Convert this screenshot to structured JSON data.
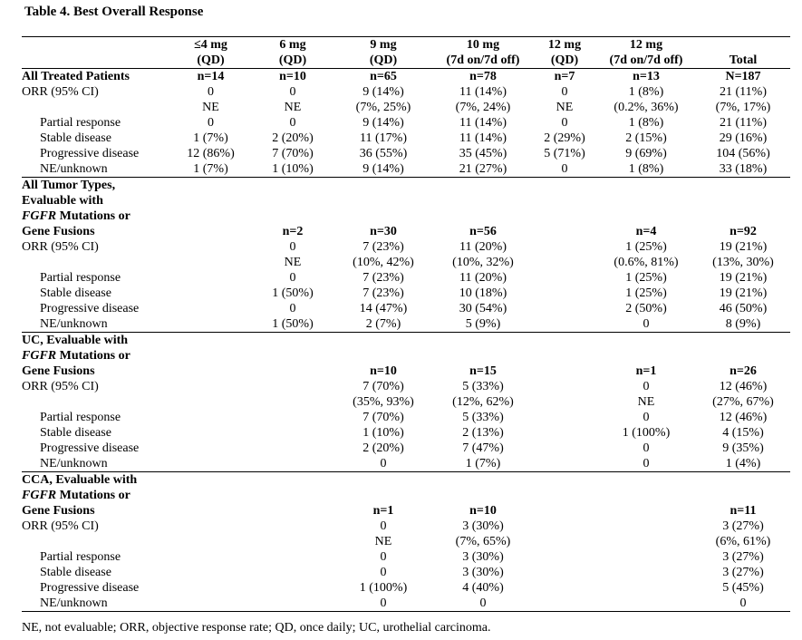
{
  "title": "Table 4. Best Overall Response",
  "header": {
    "line1": [
      "≤4 mg",
      "6 mg",
      "9 mg",
      "10 mg",
      "12 mg",
      "12 mg",
      ""
    ],
    "line2": [
      "(QD)",
      "(QD)",
      "(QD)",
      "(7d on/7d off)",
      "(QD)",
      "(7d on/7d off)",
      "Total"
    ]
  },
  "sections": [
    {
      "title_lines": [
        "All Treated Patients"
      ],
      "n": [
        "n=14",
        "n=10",
        "n=65",
        "n=78",
        "n=7",
        "n=13",
        "N=187"
      ],
      "orr_label": "ORR (95% CI)",
      "orr": [
        "0",
        "0",
        "9 (14%)",
        "11 (14%)",
        "0",
        "1 (8%)",
        "21 (11%)"
      ],
      "ci": [
        "NE",
        "NE",
        "(7%, 25%)",
        "(7%, 24%)",
        "NE",
        "(0.2%, 36%)",
        "(7%, 17%)"
      ],
      "rows": [
        {
          "label": "Partial response",
          "values": [
            "0",
            "0",
            "9 (14%)",
            "11 (14%)",
            "0",
            "1 (8%)",
            "21 (11%)"
          ]
        },
        {
          "label": "Stable disease",
          "values": [
            "1 (7%)",
            "2 (20%)",
            "11 (17%)",
            "11 (14%)",
            "2 (29%)",
            "2 (15%)",
            "29 (16%)"
          ]
        },
        {
          "label": "Progressive disease",
          "values": [
            "12 (86%)",
            "7 (70%)",
            "36 (55%)",
            "35 (45%)",
            "5 (71%)",
            "9 (69%)",
            "104 (56%)"
          ]
        },
        {
          "label": "NE/unknown",
          "values": [
            "1 (7%)",
            "1 (10%)",
            "9 (14%)",
            "21 (27%)",
            "0",
            "1 (8%)",
            "33 (18%)"
          ]
        }
      ]
    },
    {
      "title_lines": [
        "All Tumor Types,",
        "Evaluable with",
        "FGFR Mutations or",
        "Gene Fusions"
      ],
      "n": [
        "",
        "n=2",
        "n=30",
        "n=56",
        "",
        "n=4",
        "n=92"
      ],
      "orr_label": "ORR (95% CI)",
      "orr": [
        "",
        "0",
        "7 (23%)",
        "11 (20%)",
        "",
        "1 (25%)",
        "19 (21%)"
      ],
      "ci": [
        "",
        "NE",
        "(10%, 42%)",
        "(10%, 32%)",
        "",
        "(0.6%, 81%)",
        "(13%, 30%)"
      ],
      "rows": [
        {
          "label": "Partial response",
          "values": [
            "",
            "0",
            "7 (23%)",
            "11 (20%)",
            "",
            "1 (25%)",
            "19 (21%)"
          ]
        },
        {
          "label": "Stable disease",
          "values": [
            "",
            "1 (50%)",
            "7 (23%)",
            "10 (18%)",
            "",
            "1 (25%)",
            "19 (21%)"
          ]
        },
        {
          "label": "Progressive disease",
          "values": [
            "",
            "0",
            "14 (47%)",
            "30 (54%)",
            "",
            "2 (50%)",
            "46 (50%)"
          ]
        },
        {
          "label": "NE/unknown",
          "values": [
            "",
            "1 (50%)",
            "2 (7%)",
            "5 (9%)",
            "",
            "0",
            "8 (9%)"
          ]
        }
      ]
    },
    {
      "title_lines": [
        "UC, Evaluable with",
        "FGFR Mutations or",
        "Gene Fusions"
      ],
      "n": [
        "",
        "",
        "n=10",
        "n=15",
        "",
        "n=1",
        "n=26"
      ],
      "orr_label": "ORR (95% CI)",
      "orr": [
        "",
        "",
        "7 (70%)",
        "5 (33%)",
        "",
        "0",
        "12 (46%)"
      ],
      "ci": [
        "",
        "",
        "(35%, 93%)",
        "(12%, 62%)",
        "",
        "NE",
        "(27%, 67%)"
      ],
      "rows": [
        {
          "label": "Partial response",
          "values": [
            "",
            "",
            "7 (70%)",
            "5 (33%)",
            "",
            "0",
            "12 (46%)"
          ]
        },
        {
          "label": "Stable disease",
          "values": [
            "",
            "",
            "1 (10%)",
            "2 (13%)",
            "",
            "1 (100%)",
            "4 (15%)"
          ]
        },
        {
          "label": "Progressive disease",
          "values": [
            "",
            "",
            "2 (20%)",
            "7 (47%)",
            "",
            "0",
            "9 (35%)"
          ]
        },
        {
          "label": "NE/unknown",
          "values": [
            "",
            "",
            "0",
            "1 (7%)",
            "",
            "0",
            "1 (4%)"
          ]
        }
      ]
    },
    {
      "title_lines": [
        "CCA, Evaluable with",
        "FGFR Mutations or",
        "Gene Fusions"
      ],
      "n": [
        "",
        "",
        "n=1",
        "n=10",
        "",
        "",
        "n=11"
      ],
      "orr_label": "ORR (95% CI)",
      "orr": [
        "",
        "",
        "0",
        "3 (30%)",
        "",
        "",
        "3 (27%)"
      ],
      "ci": [
        "",
        "",
        "NE",
        "(7%, 65%)",
        "",
        "",
        "(6%, 61%)"
      ],
      "rows": [
        {
          "label": "Partial response",
          "values": [
            "",
            "",
            "0",
            "3 (30%)",
            "",
            "",
            "3 (27%)"
          ]
        },
        {
          "label": "Stable disease",
          "values": [
            "",
            "",
            "0",
            "3 (30%)",
            "",
            "",
            "3 (27%)"
          ]
        },
        {
          "label": "Progressive disease",
          "values": [
            "",
            "",
            "1 (100%)",
            "4 (40%)",
            "",
            "",
            "5 (45%)"
          ]
        },
        {
          "label": "NE/unknown",
          "values": [
            "",
            "",
            "0",
            "0",
            "",
            "",
            "0"
          ]
        }
      ]
    }
  ],
  "footnote": "NE, not evaluable; ORR, objective response rate; QD, once daily; UC, urothelial carcinoma."
}
